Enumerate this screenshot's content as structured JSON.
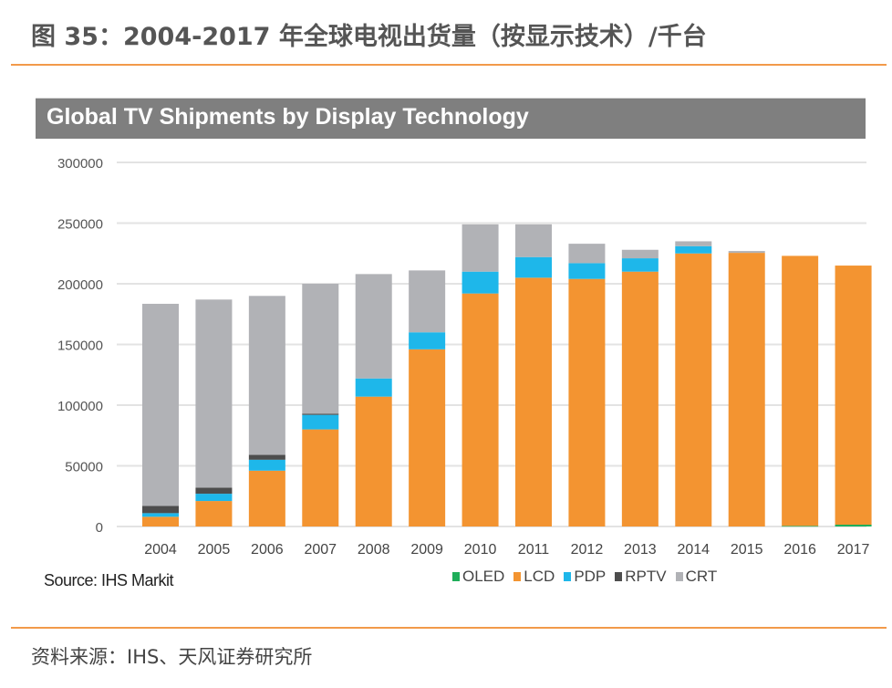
{
  "figure": {
    "title": "图 35：2004-2017 年全球电视出货量（按显示技术）/千台",
    "footer_source": "资料来源：IHS、天风证券研究所"
  },
  "chart_data": {
    "type": "bar",
    "stacked": true,
    "title": "Global TV Shipments by Display Technology",
    "source": "Source: IHS Markit",
    "xlabel": "",
    "ylabel": "",
    "ylim": [
      0,
      300000
    ],
    "yticks": [
      0,
      50000,
      100000,
      150000,
      200000,
      250000,
      300000
    ],
    "ytick_labels": [
      "0",
      "50000",
      "100000",
      "150000",
      "200000",
      "250000",
      "300000"
    ],
    "grid": true,
    "legend_position": "bottom-right",
    "categories": [
      "2004",
      "2005",
      "2006",
      "2007",
      "2008",
      "2009",
      "2010",
      "2011",
      "2012",
      "2013",
      "2014",
      "2015",
      "2016",
      "2017"
    ],
    "series": [
      {
        "name": "OLED",
        "color": "#1fae5a",
        "values": [
          0,
          0,
          0,
          0,
          0,
          0,
          0,
          0,
          0,
          0,
          0,
          0,
          500,
          1500
        ]
      },
      {
        "name": "LCD",
        "color": "#f39431",
        "values": [
          8000,
          21000,
          46000,
          80000,
          107000,
          146000,
          192000,
          205000,
          204000,
          210000,
          225000,
          225500,
          222500,
          213500
        ]
      },
      {
        "name": "PDP",
        "color": "#1eb7ea",
        "values": [
          3000,
          6000,
          9000,
          12000,
          15000,
          14000,
          18000,
          17000,
          13000,
          11000,
          6000,
          0,
          0,
          0
        ]
      },
      {
        "name": "RPTV",
        "color": "#4d4d4d",
        "values": [
          6000,
          5000,
          4000,
          1000,
          0,
          0,
          0,
          0,
          0,
          0,
          0,
          0,
          0,
          0
        ]
      },
      {
        "name": "CRT",
        "color": "#b1b2b6",
        "values": [
          166500,
          155000,
          131000,
          107000,
          86000,
          51000,
          39000,
          27000,
          16000,
          7000,
          4000,
          1500,
          0,
          0
        ]
      }
    ]
  }
}
